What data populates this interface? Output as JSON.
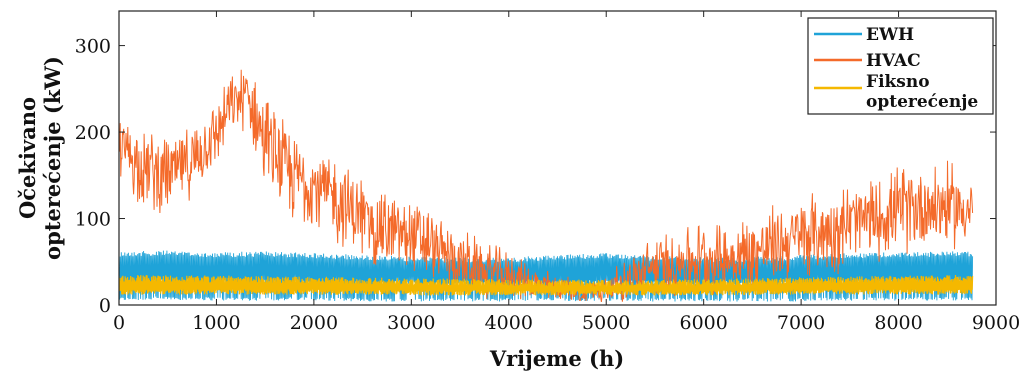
{
  "chart_data": {
    "type": "line",
    "title": "",
    "xlabel": "Vrijeme (h)",
    "ylabel_lines": [
      "Očekivano",
      "opterećenje (kW)"
    ],
    "xlim": [
      0,
      9000
    ],
    "ylim": [
      0,
      340
    ],
    "x_ticks": [
      0,
      1000,
      2000,
      3000,
      4000,
      5000,
      6000,
      7000,
      8000,
      9000
    ],
    "y_ticks": [
      0,
      100,
      200,
      300
    ],
    "grid": false,
    "legend_position": "top-right",
    "series": [
      {
        "name": "EWH",
        "color": "#1fa3d8",
        "x": [
          0,
          500,
          1000,
          1500,
          2000,
          2500,
          3000,
          3500,
          4000,
          4500,
          5000,
          5500,
          6000,
          6500,
          7000,
          7500,
          8000,
          8500,
          8760
        ],
        "upper": [
          62,
          63,
          61,
          62,
          60,
          58,
          56,
          55,
          55,
          58,
          60,
          57,
          55,
          56,
          58,
          60,
          61,
          62,
          62
        ],
        "lower": [
          5,
          6,
          5,
          5,
          5,
          4,
          4,
          4,
          4,
          4,
          5,
          4,
          4,
          4,
          4,
          5,
          5,
          5,
          5
        ]
      },
      {
        "name": "HVAC",
        "color": "#f46a2a",
        "x": [
          0,
          250,
          500,
          750,
          1000,
          1150,
          1300,
          1500,
          1750,
          2000,
          2250,
          2500,
          2750,
          3000,
          3250,
          3500,
          3750,
          4000,
          4250,
          4500,
          4750,
          5000,
          5250,
          5500,
          5750,
          6000,
          6250,
          6500,
          6750,
          7000,
          7250,
          7500,
          7750,
          8000,
          8250,
          8500,
          8760
        ],
        "values": [
          185,
          160,
          150,
          165,
          200,
          230,
          245,
          190,
          150,
          140,
          120,
          100,
          85,
          80,
          65,
          50,
          40,
          35,
          25,
          20,
          15,
          18,
          30,
          45,
          50,
          55,
          55,
          60,
          70,
          80,
          85,
          95,
          100,
          110,
          115,
          115,
          110
        ],
        "noise": [
          60,
          70,
          70,
          60,
          60,
          50,
          60,
          80,
          80,
          80,
          75,
          75,
          70,
          70,
          60,
          55,
          50,
          40,
          30,
          25,
          20,
          25,
          40,
          55,
          60,
          65,
          60,
          70,
          70,
          70,
          75,
          75,
          70,
          75,
          80,
          75,
          65
        ]
      },
      {
        "name": "Fiksno opterećenje",
        "legend_lines": [
          "Fiksno",
          "opterećenje"
        ],
        "color": "#f5b800",
        "x": [
          0,
          1000,
          2000,
          3000,
          4000,
          5000,
          6000,
          7000,
          8000,
          8760
        ],
        "upper": [
          35,
          34,
          33,
          31,
          30,
          29,
          30,
          32,
          34,
          35
        ],
        "lower": [
          12,
          12,
          12,
          11,
          11,
          11,
          11,
          12,
          12,
          12
        ]
      }
    ]
  }
}
